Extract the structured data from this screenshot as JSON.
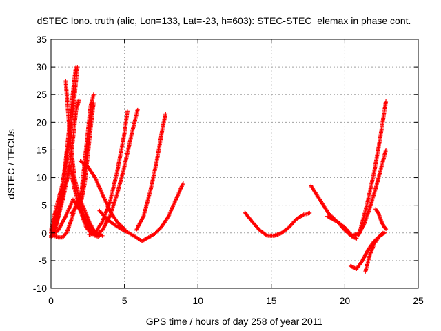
{
  "chart_data": {
    "type": "scatter",
    "title": "dSTEC Iono. truth (alic, Lon=133, Lat=-23, h=603): STEC-STEC_elemax in phase cont.",
    "xlabel": "GPS time / hours of day 258 of year 2011",
    "ylabel": "dSTEC  / TECUs",
    "xlim": [
      0,
      25
    ],
    "ylim": [
      -10,
      35
    ],
    "xticks": [
      0,
      5,
      10,
      15,
      20,
      25
    ],
    "yticks": [
      -10,
      -5,
      0,
      5,
      10,
      15,
      20,
      25,
      30,
      35
    ],
    "grid": true,
    "legend": "none",
    "marker": "plus",
    "color": "#ff0000",
    "series": [
      {
        "x": [
          0.0,
          0.4,
          0.8,
          1.0,
          1.2,
          1.5,
          1.8
        ],
        "y": [
          0.5,
          5.0,
          9.0,
          12.0,
          16.0,
          22.0,
          30.0
        ]
      },
      {
        "x": [
          0.0,
          0.5,
          0.8,
          1.0,
          1.2,
          1.4,
          1.6,
          1.7
        ],
        "y": [
          0.0,
          4.0,
          9.0,
          13.0,
          18.0,
          23.0,
          28.0,
          30.0
        ]
      },
      {
        "x": [
          0.0,
          0.4,
          0.8,
          1.2,
          1.5,
          1.7,
          1.9
        ],
        "y": [
          -0.8,
          2.0,
          6.0,
          11.0,
          17.0,
          22.0,
          24.0
        ]
      },
      {
        "x": [
          0.2,
          0.5,
          0.9,
          1.3
        ],
        "y": [
          -0.5,
          3.0,
          8.0,
          12.0
        ]
      },
      {
        "x": [
          0.0,
          0.5,
          1.0,
          1.5,
          2.0,
          2.5,
          3.0,
          3.3
        ],
        "y": [
          -0.5,
          0.5,
          3.0,
          6.0,
          4.0,
          1.5,
          0.0,
          -0.5
        ]
      },
      {
        "x": [
          1.0,
          1.3,
          1.6,
          2.0,
          2.4,
          2.8,
          3.2
        ],
        "y": [
          27.5,
          17.0,
          10.0,
          5.0,
          2.0,
          0.0,
          -0.7
        ]
      },
      {
        "x": [
          1.3,
          1.6,
          2.0,
          2.4,
          2.8
        ],
        "y": [
          12.0,
          8.0,
          4.0,
          1.0,
          -0.3
        ]
      },
      {
        "x": [
          0.2,
          0.5,
          0.8,
          1.1,
          1.4,
          1.7,
          2.0,
          2.3,
          2.6,
          2.9,
          3.2,
          3.5
        ],
        "y": [
          -0.5,
          -0.8,
          -0.8,
          0.2,
          2.5,
          5.0,
          6.0,
          4.0,
          2.0,
          0.5,
          -0.2,
          -0.5
        ]
      },
      {
        "x": [
          1.4,
          1.8,
          2.1,
          2.3,
          2.5,
          2.7,
          2.9
        ],
        "y": [
          3.5,
          5.0,
          8.0,
          13.0,
          18.0,
          23.0,
          25.0
        ]
      },
      {
        "x": [
          2.0,
          2.3,
          2.5,
          2.7,
          2.9
        ],
        "y": [
          5.0,
          9.0,
          14.0,
          19.0,
          23.5
        ]
      },
      {
        "x": [
          2.0,
          2.5,
          3.0,
          3.5,
          4.0,
          4.5,
          5.0
        ],
        "y": [
          13.0,
          12.0,
          10.0,
          7.0,
          4.0,
          2.0,
          0.7
        ]
      },
      {
        "x": [
          2.6,
          3.0,
          3.5,
          4.0,
          4.5,
          5.0,
          5.2
        ],
        "y": [
          -0.3,
          0.0,
          2.0,
          5.5,
          11.0,
          18.0,
          22.0
        ]
      },
      {
        "x": [
          3.0,
          3.5,
          4.0,
          4.5,
          5.0,
          5.5,
          5.9
        ],
        "y": [
          -0.5,
          0.5,
          3.0,
          7.0,
          12.0,
          18.0,
          22.3
        ]
      },
      {
        "x": [
          3.3,
          3.8,
          4.3,
          4.8,
          5.3,
          5.8,
          6.2,
          6.5,
          7.0,
          7.5,
          8.0,
          8.5,
          9.0
        ],
        "y": [
          4.0,
          2.5,
          1.5,
          0.7,
          0.0,
          -0.8,
          -1.5,
          -1.0,
          -0.3,
          1.0,
          3.0,
          6.0,
          9.0
        ]
      },
      {
        "x": [
          5.8,
          6.3,
          6.8,
          7.2,
          7.6,
          7.8
        ],
        "y": [
          0.5,
          3.0,
          8.0,
          13.0,
          19.0,
          21.5
        ]
      },
      {
        "x": [
          13.2,
          13.7,
          14.2,
          14.7,
          15.2,
          15.7,
          16.2,
          16.7,
          17.2,
          17.6
        ],
        "y": [
          3.7,
          2.0,
          0.5,
          -0.5,
          -0.5,
          0.0,
          1.0,
          2.5,
          3.3,
          3.6
        ]
      },
      {
        "x": [
          17.7,
          18.3,
          18.9,
          19.5,
          20.0,
          20.5,
          20.8
        ],
        "y": [
          8.5,
          6.0,
          3.5,
          2.0,
          0.5,
          -0.7,
          -1.0
        ]
      },
      {
        "x": [
          18.8,
          19.5,
          20.0,
          20.5,
          21.0,
          21.5,
          22.0,
          22.4,
          22.8
        ],
        "y": [
          3.0,
          2.0,
          1.0,
          -0.5,
          0.0,
          5.0,
          11.0,
          17.0,
          23.8
        ]
      },
      {
        "x": [
          20.9,
          21.3,
          21.7,
          22.1,
          22.5,
          22.8
        ],
        "y": [
          -0.5,
          1.5,
          4.5,
          8.0,
          12.0,
          15.0
        ]
      },
      {
        "x": [
          20.4,
          20.8,
          21.2,
          21.6,
          22.0,
          22.4,
          22.7
        ],
        "y": [
          -6.0,
          -6.5,
          -5.0,
          -3.0,
          -1.5,
          -0.5,
          0.0
        ]
      },
      {
        "x": [
          21.4,
          21.7,
          22.0,
          22.3,
          22.6
        ],
        "y": [
          -7.0,
          -4.0,
          -2.0,
          -0.8,
          0.0
        ]
      },
      {
        "x": [
          22.1,
          22.3,
          22.5,
          22.7,
          22.8
        ],
        "y": [
          4.3,
          3.5,
          2.0,
          1.0,
          0.7
        ]
      }
    ]
  }
}
